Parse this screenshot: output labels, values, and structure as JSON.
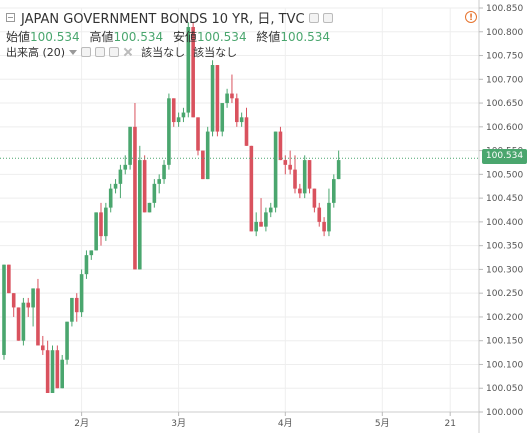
{
  "header": {
    "title": "JAPAN GOVERNMENT BONDS 10 YR, 日, TVC",
    "ohlc": [
      {
        "label": "始値",
        "value": "100.534"
      },
      {
        "label": "高値",
        "value": "100.534"
      },
      {
        "label": "安値",
        "value": "100.534"
      },
      {
        "label": "終値",
        "value": "100.534"
      }
    ],
    "volume_label": "出来高 (20)",
    "na1": "該当なし",
    "na2": "該当なし",
    "warning": "!"
  },
  "last_price": "100.534",
  "colors": {
    "up": "#4aa66e",
    "down": "#d9525e",
    "grid": "#eeeeee",
    "price_line": "#4aa66e"
  },
  "chart_data": {
    "type": "candlestick",
    "title": "JAPAN GOVERNMENT BONDS 10 YR, 日, TVC",
    "ylim": [
      100.0,
      100.85
    ],
    "y_ticks": [
      "100.850",
      "100.800",
      "100.750",
      "100.700",
      "100.650",
      "100.600",
      "100.550",
      "100.500",
      "100.450",
      "100.400",
      "100.350",
      "100.300",
      "100.250",
      "100.200",
      "100.150",
      "100.100",
      "100.050",
      "100.000"
    ],
    "x_ticks": [
      {
        "label": "2月",
        "index": 16
      },
      {
        "label": "3月",
        "index": 36
      },
      {
        "label": "4月",
        "index": 58
      },
      {
        "label": "5月",
        "index": 78
      },
      {
        "label": "21",
        "index": 92
      }
    ],
    "grid": true,
    "candles": [
      [
        100.12,
        100.31,
        100.11,
        100.31
      ],
      [
        100.31,
        100.31,
        100.25,
        100.25
      ],
      [
        100.25,
        100.25,
        100.2,
        100.22
      ],
      [
        100.22,
        100.22,
        100.15,
        100.15
      ],
      [
        100.15,
        100.24,
        100.14,
        100.23
      ],
      [
        100.23,
        100.24,
        100.2,
        100.22
      ],
      [
        100.22,
        100.26,
        100.18,
        100.26
      ],
      [
        100.26,
        100.28,
        100.14,
        100.14
      ],
      [
        100.14,
        100.16,
        100.12,
        100.13
      ],
      [
        100.13,
        100.15,
        100.04,
        100.04
      ],
      [
        100.04,
        100.14,
        100.04,
        100.13
      ],
      [
        100.13,
        100.14,
        100.05,
        100.05
      ],
      [
        100.05,
        100.12,
        100.05,
        100.11
      ],
      [
        100.11,
        100.19,
        100.1,
        100.19
      ],
      [
        100.19,
        100.24,
        100.18,
        100.24
      ],
      [
        100.24,
        100.25,
        100.19,
        100.21
      ],
      [
        100.21,
        100.3,
        100.2,
        100.29
      ],
      [
        100.29,
        100.34,
        100.28,
        100.33
      ],
      [
        100.33,
        100.34,
        100.32,
        100.34
      ],
      [
        100.34,
        100.42,
        100.34,
        100.42
      ],
      [
        100.42,
        100.44,
        100.35,
        100.37
      ],
      [
        100.37,
        100.44,
        100.36,
        100.43
      ],
      [
        100.43,
        100.48,
        100.42,
        100.47
      ],
      [
        100.47,
        100.49,
        100.46,
        100.48
      ],
      [
        100.48,
        100.52,
        100.45,
        100.51
      ],
      [
        100.51,
        100.54,
        100.5,
        100.52
      ],
      [
        100.52,
        100.6,
        100.51,
        100.6
      ],
      [
        100.6,
        100.65,
        100.3,
        100.3
      ],
      [
        100.3,
        100.56,
        100.3,
        100.53
      ],
      [
        100.53,
        100.54,
        100.42,
        100.42
      ],
      [
        100.42,
        100.44,
        100.42,
        100.44
      ],
      [
        100.44,
        100.49,
        100.43,
        100.48
      ],
      [
        100.48,
        100.5,
        100.46,
        100.49
      ],
      [
        100.49,
        100.53,
        100.48,
        100.52
      ],
      [
        100.52,
        100.67,
        100.51,
        100.66
      ],
      [
        100.66,
        100.66,
        100.6,
        100.61
      ],
      [
        100.61,
        100.63,
        100.6,
        100.62
      ],
      [
        100.62,
        100.64,
        100.61,
        100.63
      ],
      [
        100.63,
        100.82,
        100.62,
        100.81
      ],
      [
        100.81,
        100.82,
        100.62,
        100.62
      ],
      [
        100.62,
        100.62,
        100.54,
        100.55
      ],
      [
        100.55,
        100.55,
        100.49,
        100.49
      ],
      [
        100.49,
        100.6,
        100.49,
        100.59
      ],
      [
        100.59,
        100.74,
        100.58,
        100.73
      ],
      [
        100.73,
        100.73,
        100.58,
        100.59
      ],
      [
        100.59,
        100.65,
        100.58,
        100.65
      ],
      [
        100.65,
        100.68,
        100.64,
        100.67
      ],
      [
        100.67,
        100.71,
        100.65,
        100.66
      ],
      [
        100.66,
        100.67,
        100.6,
        100.61
      ],
      [
        100.61,
        100.63,
        100.6,
        100.62
      ],
      [
        100.62,
        100.64,
        100.56,
        100.56
      ],
      [
        100.56,
        100.56,
        100.38,
        100.38
      ],
      [
        100.38,
        100.42,
        100.37,
        100.4
      ],
      [
        100.4,
        100.45,
        100.39,
        100.39
      ],
      [
        100.39,
        100.43,
        100.38,
        100.42
      ],
      [
        100.42,
        100.44,
        100.41,
        100.43
      ],
      [
        100.43,
        100.59,
        100.42,
        100.59
      ],
      [
        100.59,
        100.6,
        100.53,
        100.53
      ],
      [
        100.53,
        100.54,
        100.5,
        100.52
      ],
      [
        100.52,
        100.55,
        100.5,
        100.51
      ],
      [
        100.51,
        100.54,
        100.46,
        100.47
      ],
      [
        100.47,
        100.48,
        100.45,
        100.46
      ],
      [
        100.46,
        100.54,
        100.45,
        100.53
      ],
      [
        100.53,
        100.53,
        100.46,
        100.47
      ],
      [
        100.47,
        100.47,
        100.42,
        100.43
      ],
      [
        100.43,
        100.44,
        100.39,
        100.4
      ],
      [
        100.4,
        100.41,
        100.37,
        100.38
      ],
      [
        100.38,
        100.47,
        100.37,
        100.44
      ],
      [
        100.44,
        100.5,
        100.43,
        100.49
      ],
      [
        100.49,
        100.55,
        100.49,
        100.53
      ]
    ]
  }
}
